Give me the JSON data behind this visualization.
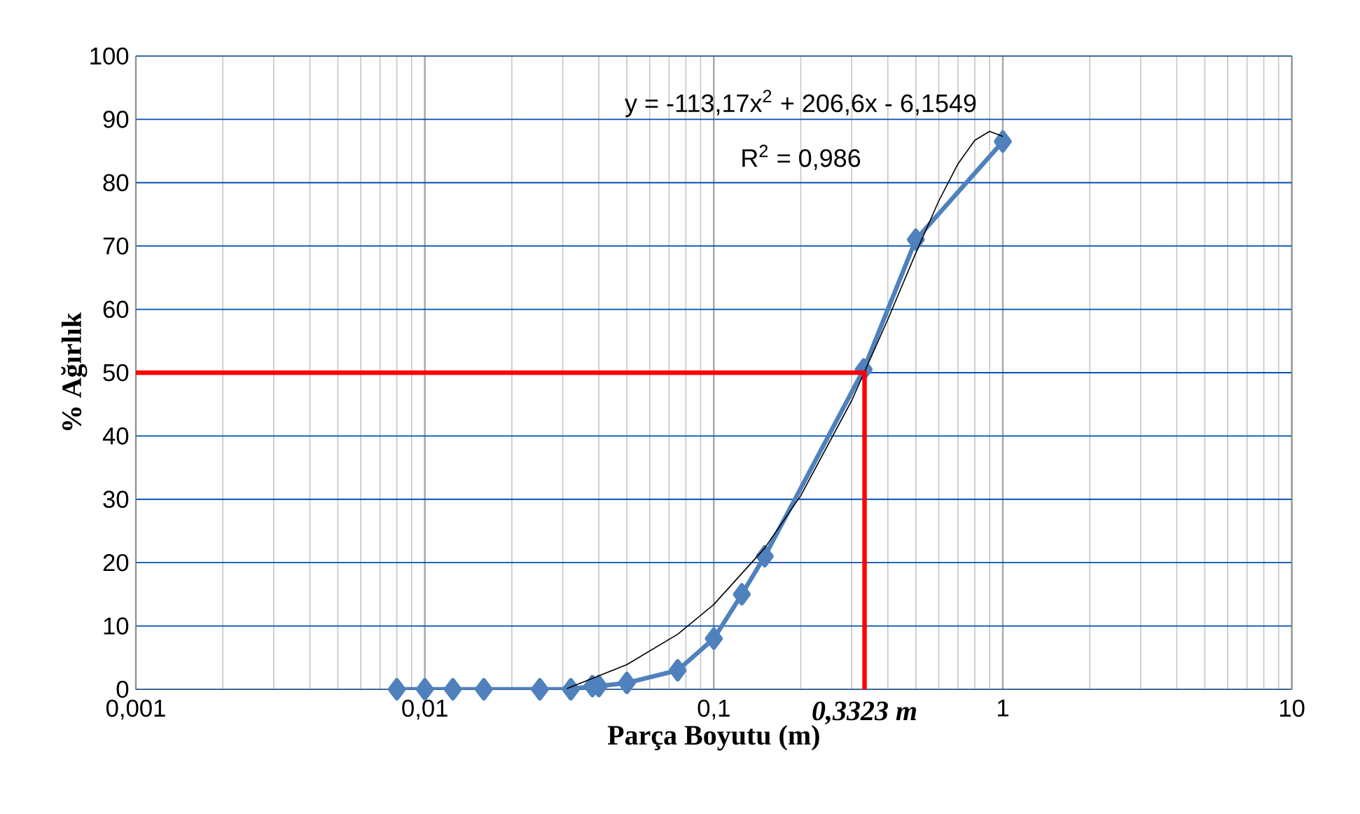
{
  "chart_data": {
    "type": "line",
    "xlabel": "Parça Boyutu (m)",
    "ylabel": "% Ağırlık",
    "log": "x",
    "grid": true,
    "marker": "diamond",
    "xlim": [
      0.001,
      10
    ],
    "ylim": [
      0,
      100
    ],
    "xticks": [
      {
        "value": 0.001,
        "label": "0,001"
      },
      {
        "value": 0.01,
        "label": "0,01"
      },
      {
        "value": 0.1,
        "label": "0,1"
      },
      {
        "value": 1,
        "label": "1"
      },
      {
        "value": 10,
        "label": "10"
      }
    ],
    "yticks": [
      0,
      10,
      20,
      30,
      40,
      50,
      60,
      70,
      80,
      90,
      100
    ],
    "series": [
      {
        "color": "#4f81bd",
        "x": [
          0.008,
          0.01,
          0.0125,
          0.016,
          0.025,
          0.032,
          0.038,
          0.04,
          0.05,
          0.075,
          0.1,
          0.125,
          0.15,
          0.33,
          0.5,
          1
        ],
        "values": [
          0,
          0,
          0,
          0,
          0,
          0,
          0.5,
          0.5,
          1,
          3,
          8,
          15,
          21,
          50.5,
          71,
          86.5
        ]
      },
      {
        "color": "#000000",
        "marker": "none",
        "x": [
          0.031,
          0.05,
          0.075,
          0.1,
          0.15,
          0.2,
          0.3,
          0.4,
          0.5,
          0.6,
          0.7,
          0.8,
          0.9,
          1
        ],
        "values": [
          0.1,
          3.9,
          8.7,
          13.4,
          22.3,
          30.6,
          45.6,
          58.4,
          68.9,
          77.1,
          83,
          86.7,
          88.1,
          87.3
        ]
      },
      {
        "color": "#ff0000",
        "marker": "none",
        "x": [
          0.001,
          0.3323,
          0.3323
        ],
        "values": [
          50,
          50,
          0
        ]
      }
    ],
    "annotations": [
      "y = -113,17x$^{2}$ + 206,6x - 6,1549",
      "R$^{2}$ = 0,986",
      {
        "text": "0,3323 m",
        "x": 0.3323,
        "y": 0
      }
    ]
  }
}
